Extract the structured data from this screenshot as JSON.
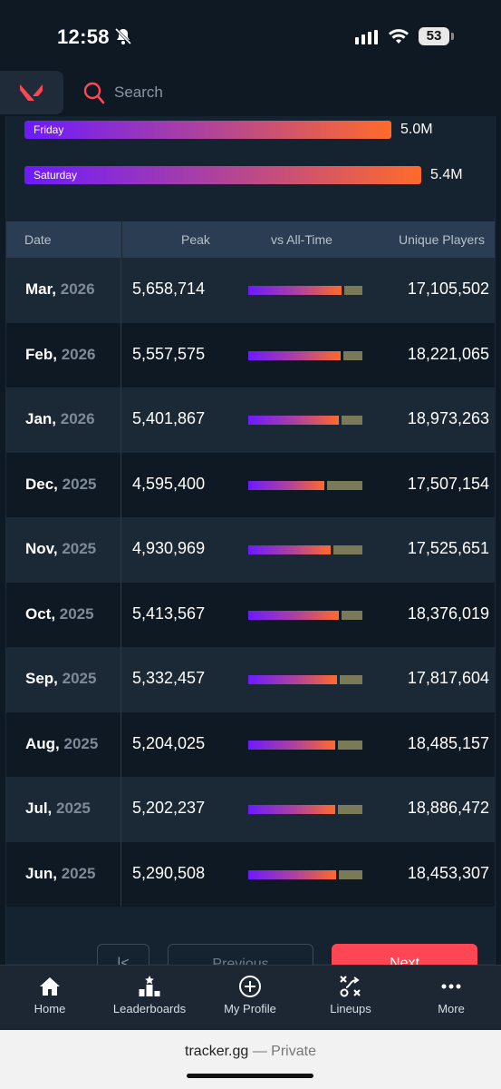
{
  "status_bar": {
    "time": "12:58",
    "battery": "53"
  },
  "header": {
    "search_placeholder": "Search"
  },
  "day_stats": [
    {
      "day": "Friday",
      "value_label": "5.0M",
      "fill": 0.925
    },
    {
      "day": "Saturday",
      "value_label": "5.4M",
      "fill": 1.0
    }
  ],
  "table": {
    "headers": {
      "date": "Date",
      "peak": "Peak",
      "vs": "vs All-Time",
      "unique": "Unique Players"
    },
    "rows": [
      {
        "month": "Mar,",
        "year": "2026",
        "peak": "5,658,714",
        "unique": "17,105,502",
        "vs_pct": 0.82
      },
      {
        "month": "Feb,",
        "year": "2026",
        "peak": "5,557,575",
        "unique": "18,221,065",
        "vs_pct": 0.81
      },
      {
        "month": "Jan,",
        "year": "2026",
        "peak": "5,401,867",
        "unique": "18,973,263",
        "vs_pct": 0.79
      },
      {
        "month": "Dec,",
        "year": "2025",
        "peak": "4,595,400",
        "unique": "17,507,154",
        "vs_pct": 0.67
      },
      {
        "month": "Nov,",
        "year": "2025",
        "peak": "4,930,969",
        "unique": "17,525,651",
        "vs_pct": 0.72
      },
      {
        "month": "Oct,",
        "year": "2025",
        "peak": "5,413,567",
        "unique": "18,376,019",
        "vs_pct": 0.79
      },
      {
        "month": "Sep,",
        "year": "2025",
        "peak": "5,332,457",
        "unique": "17,817,604",
        "vs_pct": 0.78
      },
      {
        "month": "Aug,",
        "year": "2025",
        "peak": "5,204,025",
        "unique": "18,485,157",
        "vs_pct": 0.76
      },
      {
        "month": "Jul,",
        "year": "2025",
        "peak": "5,202,237",
        "unique": "18,886,472",
        "vs_pct": 0.76
      },
      {
        "month": "Jun,",
        "year": "2025",
        "peak": "5,290,508",
        "unique": "18,453,307",
        "vs_pct": 0.77
      }
    ]
  },
  "pagination": {
    "first": "|<",
    "previous": "Previous",
    "next": "Next"
  },
  "bottom_nav": [
    {
      "label": "Home",
      "icon": "home-icon"
    },
    {
      "label": "Leaderboards",
      "icon": "leaderboards-icon"
    },
    {
      "label": "My Profile",
      "icon": "plus-circle-icon"
    },
    {
      "label": "Lineups",
      "icon": "lineups-icon"
    },
    {
      "label": "More",
      "icon": "more-icon"
    }
  ],
  "browser": {
    "domain": "tracker.gg",
    "mode": " — Private"
  },
  "colors": {
    "accent": "#ff4655",
    "bar_start": "#6d1aff",
    "bar_end": "#ff6a2a",
    "bar_rest": "#7a7a58"
  }
}
